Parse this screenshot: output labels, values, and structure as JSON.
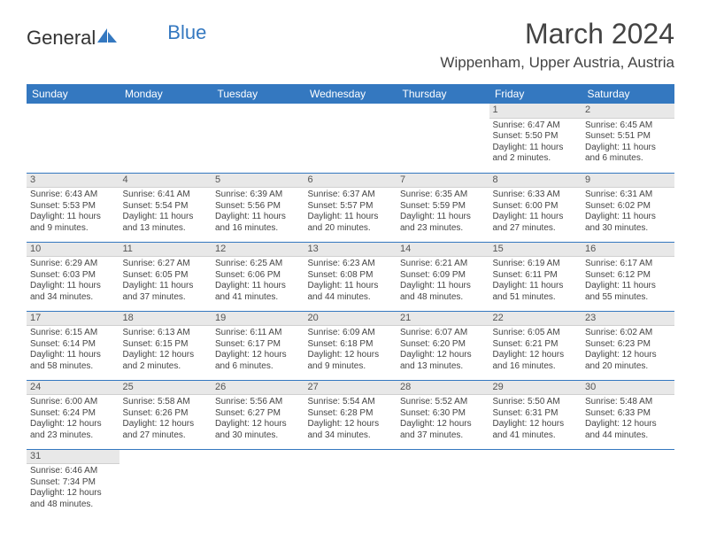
{
  "logo": {
    "text1": "General",
    "text2": "Blue",
    "icon_color": "#3478c0"
  },
  "title": "March 2024",
  "location": "Wippenham, Upper Austria, Austria",
  "header_bg": "#3478c0",
  "header_fg": "#ffffff",
  "daynum_bg": "#e8e8e8",
  "border_color": "#3478c0",
  "weekdays": [
    "Sunday",
    "Monday",
    "Tuesday",
    "Wednesday",
    "Thursday",
    "Friday",
    "Saturday"
  ],
  "weeks": [
    [
      null,
      null,
      null,
      null,
      null,
      {
        "n": "1",
        "sr": "Sunrise: 6:47 AM",
        "ss": "Sunset: 5:50 PM",
        "dl1": "Daylight: 11 hours",
        "dl2": "and 2 minutes."
      },
      {
        "n": "2",
        "sr": "Sunrise: 6:45 AM",
        "ss": "Sunset: 5:51 PM",
        "dl1": "Daylight: 11 hours",
        "dl2": "and 6 minutes."
      }
    ],
    [
      {
        "n": "3",
        "sr": "Sunrise: 6:43 AM",
        "ss": "Sunset: 5:53 PM",
        "dl1": "Daylight: 11 hours",
        "dl2": "and 9 minutes."
      },
      {
        "n": "4",
        "sr": "Sunrise: 6:41 AM",
        "ss": "Sunset: 5:54 PM",
        "dl1": "Daylight: 11 hours",
        "dl2": "and 13 minutes."
      },
      {
        "n": "5",
        "sr": "Sunrise: 6:39 AM",
        "ss": "Sunset: 5:56 PM",
        "dl1": "Daylight: 11 hours",
        "dl2": "and 16 minutes."
      },
      {
        "n": "6",
        "sr": "Sunrise: 6:37 AM",
        "ss": "Sunset: 5:57 PM",
        "dl1": "Daylight: 11 hours",
        "dl2": "and 20 minutes."
      },
      {
        "n": "7",
        "sr": "Sunrise: 6:35 AM",
        "ss": "Sunset: 5:59 PM",
        "dl1": "Daylight: 11 hours",
        "dl2": "and 23 minutes."
      },
      {
        "n": "8",
        "sr": "Sunrise: 6:33 AM",
        "ss": "Sunset: 6:00 PM",
        "dl1": "Daylight: 11 hours",
        "dl2": "and 27 minutes."
      },
      {
        "n": "9",
        "sr": "Sunrise: 6:31 AM",
        "ss": "Sunset: 6:02 PM",
        "dl1": "Daylight: 11 hours",
        "dl2": "and 30 minutes."
      }
    ],
    [
      {
        "n": "10",
        "sr": "Sunrise: 6:29 AM",
        "ss": "Sunset: 6:03 PM",
        "dl1": "Daylight: 11 hours",
        "dl2": "and 34 minutes."
      },
      {
        "n": "11",
        "sr": "Sunrise: 6:27 AM",
        "ss": "Sunset: 6:05 PM",
        "dl1": "Daylight: 11 hours",
        "dl2": "and 37 minutes."
      },
      {
        "n": "12",
        "sr": "Sunrise: 6:25 AM",
        "ss": "Sunset: 6:06 PM",
        "dl1": "Daylight: 11 hours",
        "dl2": "and 41 minutes."
      },
      {
        "n": "13",
        "sr": "Sunrise: 6:23 AM",
        "ss": "Sunset: 6:08 PM",
        "dl1": "Daylight: 11 hours",
        "dl2": "and 44 minutes."
      },
      {
        "n": "14",
        "sr": "Sunrise: 6:21 AM",
        "ss": "Sunset: 6:09 PM",
        "dl1": "Daylight: 11 hours",
        "dl2": "and 48 minutes."
      },
      {
        "n": "15",
        "sr": "Sunrise: 6:19 AM",
        "ss": "Sunset: 6:11 PM",
        "dl1": "Daylight: 11 hours",
        "dl2": "and 51 minutes."
      },
      {
        "n": "16",
        "sr": "Sunrise: 6:17 AM",
        "ss": "Sunset: 6:12 PM",
        "dl1": "Daylight: 11 hours",
        "dl2": "and 55 minutes."
      }
    ],
    [
      {
        "n": "17",
        "sr": "Sunrise: 6:15 AM",
        "ss": "Sunset: 6:14 PM",
        "dl1": "Daylight: 11 hours",
        "dl2": "and 58 minutes."
      },
      {
        "n": "18",
        "sr": "Sunrise: 6:13 AM",
        "ss": "Sunset: 6:15 PM",
        "dl1": "Daylight: 12 hours",
        "dl2": "and 2 minutes."
      },
      {
        "n": "19",
        "sr": "Sunrise: 6:11 AM",
        "ss": "Sunset: 6:17 PM",
        "dl1": "Daylight: 12 hours",
        "dl2": "and 6 minutes."
      },
      {
        "n": "20",
        "sr": "Sunrise: 6:09 AM",
        "ss": "Sunset: 6:18 PM",
        "dl1": "Daylight: 12 hours",
        "dl2": "and 9 minutes."
      },
      {
        "n": "21",
        "sr": "Sunrise: 6:07 AM",
        "ss": "Sunset: 6:20 PM",
        "dl1": "Daylight: 12 hours",
        "dl2": "and 13 minutes."
      },
      {
        "n": "22",
        "sr": "Sunrise: 6:05 AM",
        "ss": "Sunset: 6:21 PM",
        "dl1": "Daylight: 12 hours",
        "dl2": "and 16 minutes."
      },
      {
        "n": "23",
        "sr": "Sunrise: 6:02 AM",
        "ss": "Sunset: 6:23 PM",
        "dl1": "Daylight: 12 hours",
        "dl2": "and 20 minutes."
      }
    ],
    [
      {
        "n": "24",
        "sr": "Sunrise: 6:00 AM",
        "ss": "Sunset: 6:24 PM",
        "dl1": "Daylight: 12 hours",
        "dl2": "and 23 minutes."
      },
      {
        "n": "25",
        "sr": "Sunrise: 5:58 AM",
        "ss": "Sunset: 6:26 PM",
        "dl1": "Daylight: 12 hours",
        "dl2": "and 27 minutes."
      },
      {
        "n": "26",
        "sr": "Sunrise: 5:56 AM",
        "ss": "Sunset: 6:27 PM",
        "dl1": "Daylight: 12 hours",
        "dl2": "and 30 minutes."
      },
      {
        "n": "27",
        "sr": "Sunrise: 5:54 AM",
        "ss": "Sunset: 6:28 PM",
        "dl1": "Daylight: 12 hours",
        "dl2": "and 34 minutes."
      },
      {
        "n": "28",
        "sr": "Sunrise: 5:52 AM",
        "ss": "Sunset: 6:30 PM",
        "dl1": "Daylight: 12 hours",
        "dl2": "and 37 minutes."
      },
      {
        "n": "29",
        "sr": "Sunrise: 5:50 AM",
        "ss": "Sunset: 6:31 PM",
        "dl1": "Daylight: 12 hours",
        "dl2": "and 41 minutes."
      },
      {
        "n": "30",
        "sr": "Sunrise: 5:48 AM",
        "ss": "Sunset: 6:33 PM",
        "dl1": "Daylight: 12 hours",
        "dl2": "and 44 minutes."
      }
    ],
    [
      {
        "n": "31",
        "sr": "Sunrise: 6:46 AM",
        "ss": "Sunset: 7:34 PM",
        "dl1": "Daylight: 12 hours",
        "dl2": "and 48 minutes."
      },
      null,
      null,
      null,
      null,
      null,
      null
    ]
  ]
}
